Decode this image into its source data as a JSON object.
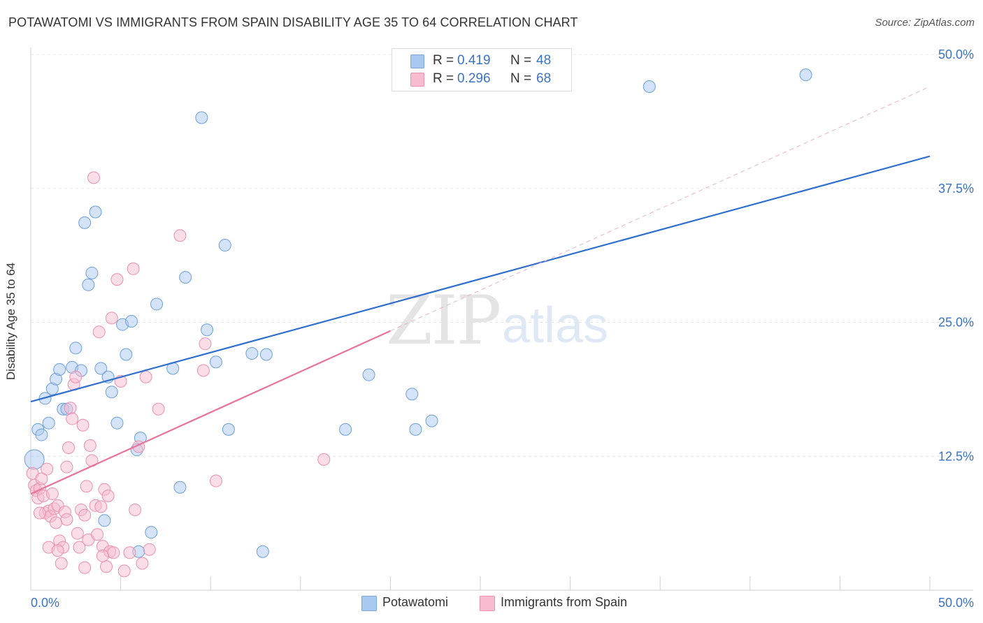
{
  "chart_data": {
    "type": "scatter",
    "title": "POTAWATOMI VS IMMIGRANTS FROM SPAIN DISABILITY AGE 35 TO 64 CORRELATION CHART",
    "source": "Source: ZipAtlas.com",
    "ylabel": "Disability Age 35 to 64",
    "xlabel": "",
    "xlim": [
      0,
      50
    ],
    "ylim": [
      0,
      50
    ],
    "x_tick_labels": [
      "0.0%",
      "50.0%"
    ],
    "y_ticks": [
      12.5,
      25.0,
      37.5,
      50.0
    ],
    "y_tick_labels": [
      "12.5%",
      "25.0%",
      "37.5%",
      "50.0%"
    ],
    "grid": true,
    "watermark": "ZIPatlas",
    "legend": {
      "placement": "top-center",
      "rows": [
        {
          "series": "Potawatomi",
          "r_label": "R =",
          "r_value": "0.419",
          "n_label": "N =",
          "n_value": "48",
          "color": "#a9c8ef",
          "border": "#7aa7de"
        },
        {
          "series": "Immigrants from Spain",
          "r_label": "R =",
          "r_value": "0.296",
          "n_label": "N =",
          "n_value": "68",
          "color": "#f7bcd0",
          "border": "#ec8fb0"
        }
      ]
    },
    "series": [
      {
        "name": "Potawatomi",
        "color": "#a9c8ef",
        "edge": "#6b9fdc",
        "line_color": "#2f6fce",
        "trend": {
          "x0": 0,
          "y0": 17.6,
          "x1": 50,
          "y1": 40.5,
          "style": "solid"
        },
        "points": [
          [
            0.2,
            12.2
          ],
          [
            0.4,
            15.0
          ],
          [
            0.6,
            14.5
          ],
          [
            0.8,
            17.9
          ],
          [
            1.0,
            15.6
          ],
          [
            1.2,
            18.8
          ],
          [
            1.4,
            19.7
          ],
          [
            1.6,
            20.6
          ],
          [
            1.8,
            16.9
          ],
          [
            2.0,
            16.9
          ],
          [
            2.3,
            20.8
          ],
          [
            2.5,
            22.6
          ],
          [
            2.8,
            20.5
          ],
          [
            3.2,
            28.5
          ],
          [
            3.4,
            29.6
          ],
          [
            3.0,
            34.3
          ],
          [
            3.6,
            35.3
          ],
          [
            3.9,
            20.7
          ],
          [
            4.1,
            6.5
          ],
          [
            4.3,
            19.9
          ],
          [
            4.5,
            18.5
          ],
          [
            4.8,
            15.6
          ],
          [
            5.1,
            24.8
          ],
          [
            5.3,
            22.0
          ],
          [
            5.6,
            25.1
          ],
          [
            5.9,
            13.1
          ],
          [
            6.1,
            14.2
          ],
          [
            6.7,
            5.4
          ],
          [
            7.0,
            26.7
          ],
          [
            7.9,
            20.7
          ],
          [
            8.3,
            9.6
          ],
          [
            8.6,
            29.2
          ],
          [
            9.5,
            44.1
          ],
          [
            9.8,
            24.3
          ],
          [
            10.3,
            21.3
          ],
          [
            10.8,
            32.2
          ],
          [
            11.0,
            15.0
          ],
          [
            12.3,
            22.1
          ],
          [
            12.9,
            3.6
          ],
          [
            13.1,
            22.0
          ],
          [
            17.5,
            15.0
          ],
          [
            18.8,
            20.1
          ],
          [
            21.2,
            18.3
          ],
          [
            21.4,
            15.0
          ],
          [
            22.3,
            15.8
          ],
          [
            34.4,
            47.0
          ],
          [
            43.1,
            48.1
          ],
          [
            6.0,
            3.6
          ]
        ]
      },
      {
        "name": "Immigrants from Spain",
        "color": "#f7bcd0",
        "edge": "#ea8fae",
        "line_color": "#e8739b",
        "trend": {
          "x0": 0,
          "y0": 9.0,
          "x1": 20,
          "y1": 24.2,
          "style": "solid"
        },
        "trend_extension": {
          "x0": 20,
          "y0": 24.2,
          "x1": 50,
          "y1": 47.0,
          "style": "dashed"
        },
        "points": [
          [
            0.1,
            10.9
          ],
          [
            0.2,
            9.8
          ],
          [
            0.3,
            9.3
          ],
          [
            0.4,
            8.6
          ],
          [
            0.5,
            9.5
          ],
          [
            0.6,
            10.4
          ],
          [
            0.7,
            8.8
          ],
          [
            0.8,
            7.2
          ],
          [
            0.9,
            11.3
          ],
          [
            1.0,
            7.4
          ],
          [
            1.1,
            6.9
          ],
          [
            1.2,
            9.0
          ],
          [
            1.3,
            7.6
          ],
          [
            1.4,
            6.3
          ],
          [
            1.5,
            7.9
          ],
          [
            1.6,
            4.6
          ],
          [
            1.7,
            2.5
          ],
          [
            1.8,
            4.0
          ],
          [
            1.9,
            7.3
          ],
          [
            2.0,
            11.5
          ],
          [
            2.1,
            13.3
          ],
          [
            2.2,
            17.0
          ],
          [
            2.3,
            16.0
          ],
          [
            2.4,
            19.2
          ],
          [
            2.5,
            19.9
          ],
          [
            2.6,
            5.3
          ],
          [
            2.7,
            4.0
          ],
          [
            2.8,
            7.5
          ],
          [
            2.9,
            15.4
          ],
          [
            3.0,
            2.1
          ],
          [
            3.1,
            9.7
          ],
          [
            3.2,
            4.7
          ],
          [
            3.3,
            13.5
          ],
          [
            3.4,
            12.1
          ],
          [
            3.5,
            38.5
          ],
          [
            3.6,
            7.9
          ],
          [
            3.7,
            5.2
          ],
          [
            3.8,
            24.1
          ],
          [
            3.9,
            7.8
          ],
          [
            4.0,
            4.1
          ],
          [
            4.1,
            9.4
          ],
          [
            4.2,
            2.2
          ],
          [
            4.3,
            8.8
          ],
          [
            4.4,
            3.6
          ],
          [
            4.5,
            25.4
          ],
          [
            4.6,
            3.5
          ],
          [
            4.8,
            29.0
          ],
          [
            5.0,
            19.5
          ],
          [
            5.2,
            1.8
          ],
          [
            5.5,
            3.5
          ],
          [
            5.7,
            30.0
          ],
          [
            5.8,
            7.5
          ],
          [
            6.0,
            13.4
          ],
          [
            6.2,
            2.5
          ],
          [
            6.4,
            19.9
          ],
          [
            6.6,
            3.8
          ],
          [
            7.1,
            16.9
          ],
          [
            8.3,
            33.1
          ],
          [
            9.7,
            23.0
          ],
          [
            9.6,
            20.5
          ],
          [
            10.3,
            10.2
          ],
          [
            16.3,
            12.2
          ],
          [
            0.5,
            7.2
          ],
          [
            1.0,
            4.0
          ],
          [
            1.5,
            3.7
          ],
          [
            2.0,
            6.6
          ],
          [
            3.0,
            7.0
          ],
          [
            4.0,
            3.2
          ]
        ]
      }
    ]
  }
}
